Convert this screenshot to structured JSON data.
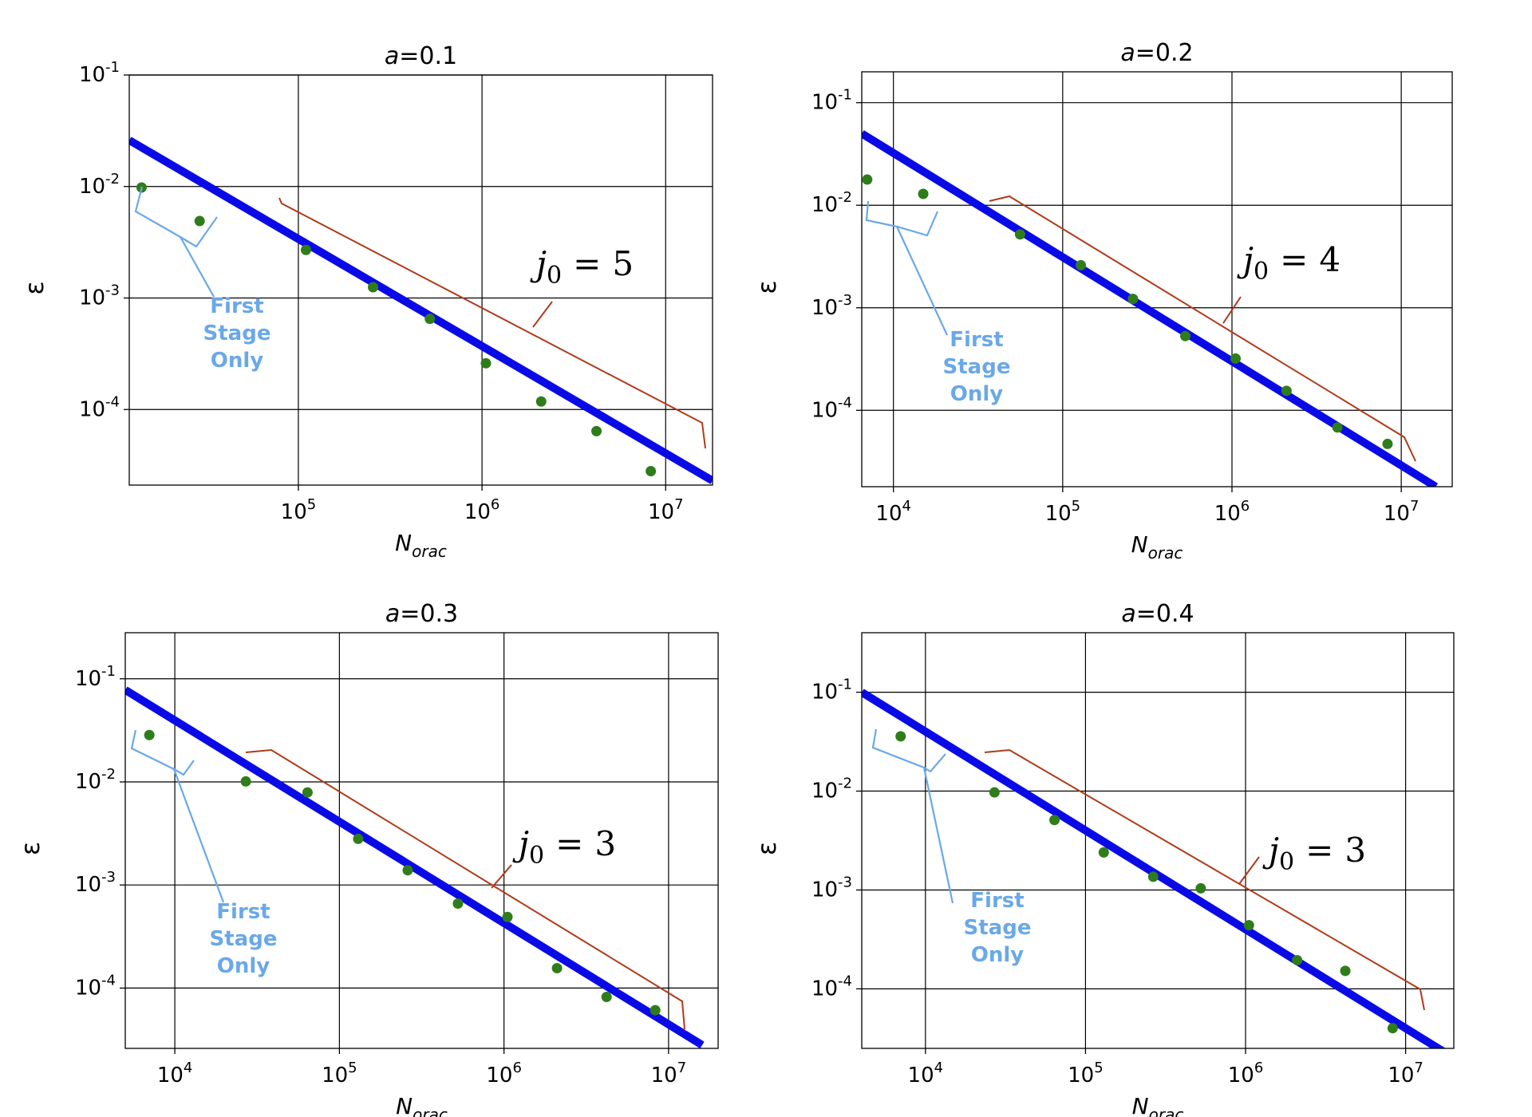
{
  "colors": {
    "fit_line": "#0a0ae6",
    "points": "#2e7d1a",
    "bracket_red": "#b03a1a",
    "annotation_blue": "#6aa8e8",
    "grid": "#000000"
  },
  "annotation_text": [
    "First",
    "Stage",
    "Only"
  ],
  "chart_data": [
    {
      "type": "scatter",
      "title": "a=0.1",
      "xlabel": "N_orac",
      "ylabel": "ε",
      "xscale": "log",
      "yscale": "log",
      "xlim": [
        12000,
        18000000
      ],
      "ylim": [
        2.1e-05,
        0.1
      ],
      "xticks": [
        100000,
        1000000,
        10000000
      ],
      "yticks": [
        0.1,
        0.01,
        0.001,
        0.0001
      ],
      "grid": true,
      "fit_line": {
        "x": [
          12000,
          18000000
        ],
        "y": [
          0.026,
          2.3e-05
        ]
      },
      "points": [
        {
          "x": 14000,
          "y": 0.0098
        },
        {
          "x": 29000,
          "y": 0.0049
        },
        {
          "x": 110000,
          "y": 0.0027
        },
        {
          "x": 255000,
          "y": 0.00125
        },
        {
          "x": 520000,
          "y": 0.00065
        },
        {
          "x": 1050000,
          "y": 0.00026
        },
        {
          "x": 2100000,
          "y": 0.000118
        },
        {
          "x": 4200000,
          "y": 6.4e-05
        },
        {
          "x": 8300000,
          "y": 2.8e-05
        }
      ],
      "j0_label": "j0 = 5"
    },
    {
      "type": "scatter",
      "title": "a=0.2",
      "xlabel": "N_orac",
      "ylabel": "ε",
      "xscale": "log",
      "yscale": "log",
      "xlim": [
        6500,
        20000000
      ],
      "ylim": [
        1.8e-05,
        0.2
      ],
      "xticks": [
        10000,
        100000,
        1000000,
        10000000
      ],
      "yticks": [
        0.1,
        0.01,
        0.001,
        0.0001
      ],
      "grid": true,
      "fit_line": {
        "x": [
          6500,
          16000000
        ],
        "y": [
          0.05,
          1.8e-05
        ]
      },
      "points": [
        {
          "x": 7000,
          "y": 0.0178
        },
        {
          "x": 15000,
          "y": 0.0129
        },
        {
          "x": 56000,
          "y": 0.0052
        },
        {
          "x": 128000,
          "y": 0.0026
        },
        {
          "x": 260000,
          "y": 0.00122
        },
        {
          "x": 530000,
          "y": 0.00053
        },
        {
          "x": 1050000,
          "y": 0.00032
        },
        {
          "x": 2100000,
          "y": 0.000155
        },
        {
          "x": 4200000,
          "y": 6.8e-05
        },
        {
          "x": 8300000,
          "y": 4.7e-05
        }
      ],
      "j0_label": "j0 = 4"
    },
    {
      "type": "scatter",
      "title": "a=0.3",
      "xlabel": "N_orac",
      "ylabel": "ε",
      "xscale": "log",
      "yscale": "log",
      "xlim": [
        5000,
        20000000
      ],
      "ylim": [
        2.6e-05,
        0.28
      ],
      "xticks": [
        10000,
        100000,
        1000000,
        10000000
      ],
      "yticks": [
        0.1,
        0.01,
        0.001,
        0.0001
      ],
      "grid": true,
      "fit_line": {
        "x": [
          5000,
          16000000
        ],
        "y": [
          0.078,
          2.8e-05
        ]
      },
      "points": [
        {
          "x": 7000,
          "y": 0.0285
        },
        {
          "x": 27000,
          "y": 0.0101
        },
        {
          "x": 64000,
          "y": 0.0079
        },
        {
          "x": 130000,
          "y": 0.0028
        },
        {
          "x": 260000,
          "y": 0.00139
        },
        {
          "x": 525000,
          "y": 0.00066
        },
        {
          "x": 1050000,
          "y": 0.00049
        },
        {
          "x": 2100000,
          "y": 0.000156
        },
        {
          "x": 4200000,
          "y": 8.2e-05
        },
        {
          "x": 8300000,
          "y": 6.1e-05
        }
      ],
      "j0_label": "j0 = 3"
    },
    {
      "type": "scatter",
      "title": "a=0.4",
      "xlabel": "N_orac",
      "ylabel": "ε",
      "xscale": "log",
      "yscale": "log",
      "xlim": [
        4000,
        20000000
      ],
      "ylim": [
        2.5e-05,
        0.4
      ],
      "xticks": [
        10000,
        100000,
        1000000,
        10000000
      ],
      "yticks": [
        0.1,
        0.01,
        0.001,
        0.0001
      ],
      "grid": true,
      "fit_line": {
        "x": [
          4000,
          20000000
        ],
        "y": [
          0.1,
          2e-05
        ]
      },
      "points": [
        {
          "x": 7000,
          "y": 0.0358
        },
        {
          "x": 27000,
          "y": 0.0097
        },
        {
          "x": 64000,
          "y": 0.0051
        },
        {
          "x": 130000,
          "y": 0.0024
        },
        {
          "x": 265000,
          "y": 0.00136
        },
        {
          "x": 525000,
          "y": 0.00104
        },
        {
          "x": 1050000,
          "y": 0.00044
        },
        {
          "x": 2100000,
          "y": 0.000195
        },
        {
          "x": 4200000,
          "y": 0.000152
        },
        {
          "x": 8300000,
          "y": 4e-05
        }
      ],
      "j0_label": "j0 = 3"
    }
  ]
}
